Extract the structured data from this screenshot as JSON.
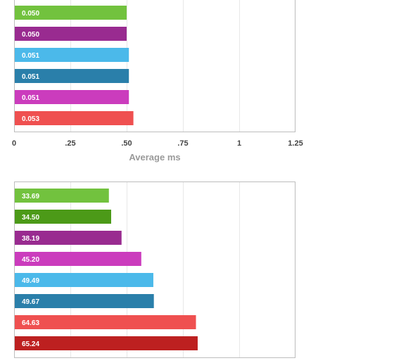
{
  "chart_data": [
    {
      "type": "bar",
      "orientation": "horizontal",
      "xlabel": "Average ms",
      "xlim": [
        0,
        1.25
      ],
      "ticks": [
        0,
        0.25,
        0.5,
        0.75,
        1,
        1.25
      ],
      "tick_labels": [
        "0",
        ".25",
        ".50",
        ".75",
        "1",
        "1.25"
      ],
      "grid": true,
      "values": [
        0.05,
        0.05,
        0.051,
        0.051,
        0.051,
        0.053
      ],
      "value_labels": [
        "0.050",
        "0.050",
        "0.051",
        "0.051",
        "0.051",
        "0.053"
      ],
      "colors": [
        "#72c23e",
        "#992b90",
        "#4bb9ea",
        "#2a7faa",
        "#cb3cbd",
        "#ef5050"
      ]
    },
    {
      "type": "bar",
      "orientation": "horizontal",
      "xlim": [
        0,
        1.25
      ],
      "grid": true,
      "values": [
        33.69,
        34.5,
        38.19,
        45.2,
        49.49,
        49.67,
        64.63,
        65.24
      ],
      "value_labels": [
        "33.69",
        "34.50",
        "38.19",
        "45.20",
        "49.49",
        "49.67",
        "64.63",
        "65.24"
      ],
      "colors": [
        "#72c23e",
        "#4c9a18",
        "#992b90",
        "#cb3cbd",
        "#4bb9ea",
        "#2a7faa",
        "#ef5050",
        "#bd2020"
      ]
    }
  ]
}
